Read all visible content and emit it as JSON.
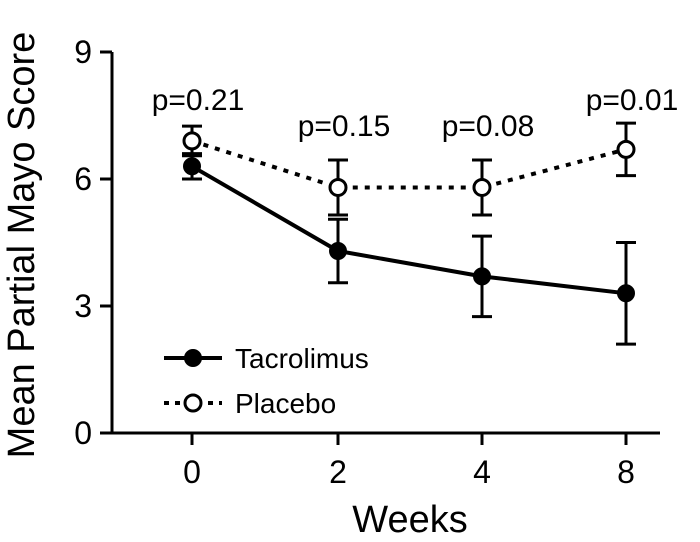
{
  "chart_data": {
    "type": "line",
    "xlabel": "Weeks",
    "ylabel": "Mean Partial Mayo Score",
    "ylim": [
      0,
      9
    ],
    "yticks": [
      0,
      3,
      6,
      9
    ],
    "categories": [
      "0",
      "2",
      "4",
      "8"
    ],
    "grid": false,
    "legend_position": "bottom-left",
    "series": [
      {
        "name": "Tacrolimus",
        "line_style": "solid",
        "marker": "filled-circle",
        "color": "#000000",
        "values": [
          6.3,
          4.3,
          3.7,
          3.3
        ],
        "error": [
          0.3,
          0.75,
          0.95,
          1.2
        ]
      },
      {
        "name": "Placebo",
        "line_style": "dotted",
        "marker": "open-circle",
        "color": "#000000",
        "values": [
          6.9,
          5.8,
          5.8,
          6.7
        ],
        "error": [
          0.35,
          0.65,
          0.65,
          0.62
        ]
      }
    ],
    "annotations": [
      "p=0.21",
      "p=0.15",
      "p=0.08",
      "p=0.01"
    ]
  }
}
